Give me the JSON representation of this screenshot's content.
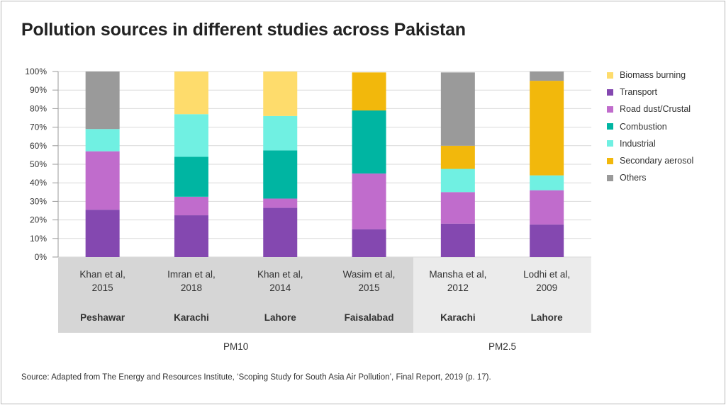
{
  "title": "Pollution sources in different studies across Pakistan",
  "source": "Source: Adapted from The Energy and Resources Institute, ‘Scoping Study for South Asia Air Pollution’, Final Report, 2019 (p. 17).",
  "chart_data": {
    "type": "bar",
    "stacked": true,
    "title": "Pollution sources in different studies across Pakistan",
    "ylim": [
      0,
      100
    ],
    "yticks": [
      "0%",
      "10%",
      "20%",
      "30%",
      "40%",
      "50%",
      "60%",
      "70%",
      "80%",
      "90%",
      "100%"
    ],
    "grid": true,
    "legend_position": "right",
    "categories": [
      {
        "study_line1": "Khan et al,",
        "study_line2": "2015",
        "city": "Peshawar"
      },
      {
        "study_line1": "Imran et al,",
        "study_line2": "2018",
        "city": "Karachi"
      },
      {
        "study_line1": "Khan et al,",
        "study_line2": "2014",
        "city": "Lahore"
      },
      {
        "study_line1": "Wasim et al,",
        "study_line2": "2015",
        "city": "Faisalabad"
      },
      {
        "study_line1": "Mansha et al,",
        "study_line2": "2012",
        "city": "Karachi"
      },
      {
        "study_line1": "Lodhi et al,",
        "study_line2": "2009",
        "city": "Lahore"
      }
    ],
    "groups": [
      {
        "label": "PM10",
        "count": 4,
        "color": "#d6d6d6"
      },
      {
        "label": "PM2.5",
        "count": 2,
        "color": "#ebebeb"
      }
    ],
    "series": [
      {
        "name": "Transport",
        "color": "#8448b0",
        "values": [
          25.5,
          22.5,
          26.5,
          15,
          18,
          17.5
        ]
      },
      {
        "name": "Road dust/Crustal",
        "color": "#c06ccc",
        "values": [
          31.5,
          10,
          5,
          30,
          17,
          18.5
        ]
      },
      {
        "name": "Combustion",
        "color": "#00b5a2",
        "values": [
          0,
          21.5,
          26,
          34,
          0,
          0
        ]
      },
      {
        "name": "Industrial",
        "color": "#70f0e2",
        "values": [
          12,
          23,
          18.5,
          0,
          12.5,
          8
        ]
      },
      {
        "name": "Secondary aerosol",
        "color": "#f2b80c",
        "values": [
          0,
          0,
          0,
          20.5,
          12.5,
          51
        ]
      },
      {
        "name": "Biomass burning",
        "color": "#fedc6c",
        "values": [
          0,
          23,
          24,
          0,
          0,
          0
        ]
      },
      {
        "name": "Others",
        "color": "#9a9a9a",
        "values": [
          31,
          0,
          0,
          0,
          39.5,
          5
        ]
      }
    ]
  },
  "legend_order": [
    {
      "name": "Biomass burning",
      "color": "#fedc6c"
    },
    {
      "name": "Transport",
      "color": "#8448b0"
    },
    {
      "name": "Road dust/Crustal",
      "color": "#c06ccc"
    },
    {
      "name": "Combustion",
      "color": "#00b5a2"
    },
    {
      "name": "Industrial",
      "color": "#70f0e2"
    },
    {
      "name": "Secondary aerosol",
      "color": "#f2b80c"
    },
    {
      "name": "Others",
      "color": "#9a9a9a"
    }
  ]
}
